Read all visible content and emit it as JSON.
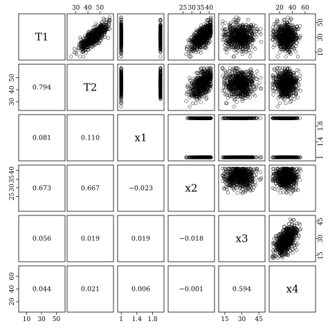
{
  "chart_data": {
    "type": "scatter",
    "variables": [
      "T1",
      "T2",
      "x1",
      "x2",
      "x3",
      "x4"
    ],
    "correlations": [
      {
        "row": "T2",
        "col": "T1",
        "label": "0.794"
      },
      {
        "row": "x1",
        "col": "T1",
        "label": "0.081"
      },
      {
        "row": "x1",
        "col": "T2",
        "label": "0.110"
      },
      {
        "row": "x2",
        "col": "T1",
        "label": "0.673"
      },
      {
        "row": "x2",
        "col": "T2",
        "label": "0.667"
      },
      {
        "row": "x2",
        "col": "x1",
        "label": "−0.023"
      },
      {
        "row": "x3",
        "col": "T1",
        "label": "0.056"
      },
      {
        "row": "x3",
        "col": "T2",
        "label": "0.019"
      },
      {
        "row": "x3",
        "col": "x1",
        "label": "0.019"
      },
      {
        "row": "x3",
        "col": "x2",
        "label": "−0.018"
      },
      {
        "row": "x4",
        "col": "T1",
        "label": "0.044"
      },
      {
        "row": "x4",
        "col": "T2",
        "label": "0.021"
      },
      {
        "row": "x4",
        "col": "x1",
        "label": "0.006"
      },
      {
        "row": "x4",
        "col": "x2",
        "label": "−0.001"
      },
      {
        "row": "x4",
        "col": "x3",
        "label": "0.594"
      }
    ],
    "axes": {
      "T1": {
        "range": [
          3,
          58
        ],
        "ticks": [
          10,
          30,
          50
        ]
      },
      "T2": {
        "range": [
          25,
          59
        ],
        "ticks": [
          30,
          40,
          50
        ]
      },
      "x1": {
        "range": [
          0.98,
          2.02
        ],
        "ticks": [
          1.0,
          1.4,
          1.8
        ]
      },
      "x2": {
        "range": [
          18,
          41.5
        ],
        "ticks": [
          25,
          30,
          35,
          40
        ]
      },
      "x3": {
        "range": [
          12,
          48
        ],
        "ticks": [
          15,
          30,
          45
        ]
      },
      "x4": {
        "range": [
          8,
          72
        ],
        "ticks": [
          20,
          40,
          60
        ]
      }
    },
    "tick_sides": {
      "top": [
        "T2",
        "x2",
        "x4"
      ],
      "bottom": [
        "T1",
        "x1",
        "x3"
      ],
      "left": [
        "T2",
        "x2",
        "x4"
      ],
      "right": [
        "T1",
        "x1",
        "x3"
      ]
    },
    "scatter_clouds": {
      "T1": {
        "mean": 31,
        "sd": 9
      },
      "T2": {
        "mean": 45,
        "sd": 5.5
      },
      "x2": {
        "mean": 36,
        "sd": 3.2
      },
      "x3": {
        "mean": 28,
        "sd": 6.5
      },
      "x4": {
        "mean": 30,
        "sd": 8.5
      },
      "x1_levels": [
        1,
        2
      ]
    },
    "grid": false,
    "legend": "none"
  }
}
